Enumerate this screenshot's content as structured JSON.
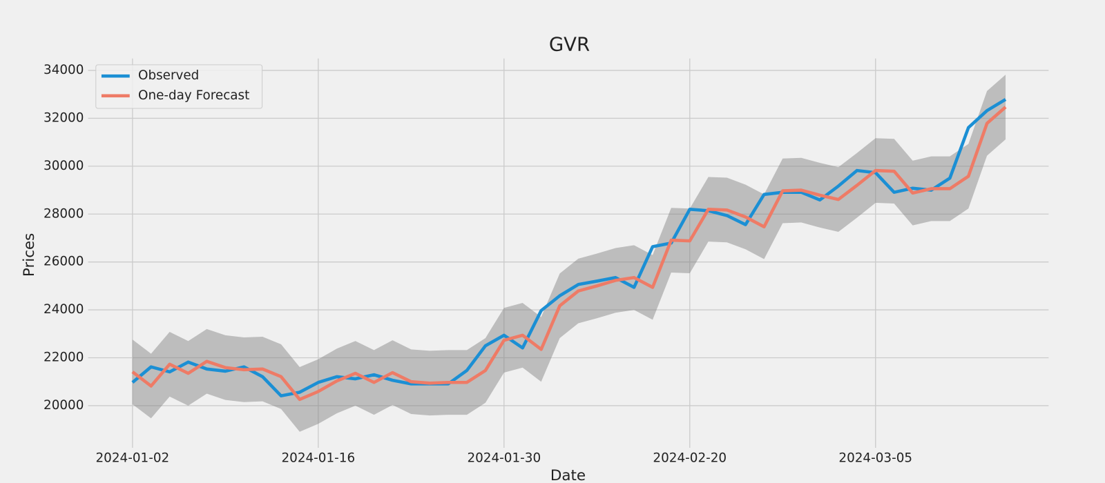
{
  "chart_data": {
    "type": "line",
    "title": "GVR",
    "x_label": "Date",
    "y_label": "Prices",
    "categories": [
      "2024-01-02",
      null,
      null,
      null,
      null,
      null,
      null,
      null,
      null,
      null,
      "2024-01-16",
      null,
      null,
      null,
      null,
      null,
      null,
      null,
      null,
      null,
      "2024-01-30",
      null,
      null,
      null,
      null,
      null,
      null,
      null,
      null,
      null,
      "2024-02-20",
      null,
      null,
      null,
      null,
      null,
      null,
      null,
      null,
      null,
      "2024-03-05",
      null,
      null,
      null,
      null,
      null,
      null,
      null
    ],
    "series": [
      {
        "name": "Observed",
        "color": "#1b8fd4",
        "values": [
          20970,
          21620,
          21410,
          21820,
          21530,
          21440,
          21620,
          21210,
          20410,
          20560,
          20970,
          21210,
          21120,
          21290,
          21060,
          20910,
          20910,
          20910,
          21470,
          22500,
          22940,
          22410,
          23970,
          24590,
          25060,
          25200,
          25350,
          24940,
          26640,
          26790,
          28200,
          28140,
          27940,
          27560,
          28820,
          28910,
          28910,
          28590,
          29170,
          29820,
          29730,
          28910,
          29080,
          29000,
          29500,
          31610,
          32320,
          32790
        ]
      },
      {
        "name": "One-day Forecast",
        "color": "#ee7b66",
        "values": [
          21410,
          20820,
          21730,
          21350,
          21850,
          21590,
          21500,
          21530,
          21210,
          20260,
          20590,
          21030,
          21350,
          20970,
          21380,
          21000,
          20940,
          20970,
          20970,
          21470,
          22730,
          22940,
          22350,
          24170,
          24790,
          25000,
          25230,
          25350,
          24940,
          26910,
          26880,
          28200,
          28170,
          27880,
          27470,
          28970,
          29000,
          28790,
          28610,
          29200,
          29820,
          29790,
          28880,
          29060,
          29060,
          29580,
          31790,
          32470
        ]
      }
    ],
    "band": {
      "color": "#7f7f7f",
      "upper": [
        22760,
        22170,
        23080,
        22700,
        23200,
        22940,
        22850,
        22880,
        22560,
        21610,
        21940,
        22380,
        22700,
        22320,
        22730,
        22350,
        22290,
        22320,
        22320,
        22820,
        24080,
        24290,
        23700,
        25520,
        26140,
        26350,
        26580,
        26700,
        26290,
        28260,
        28230,
        29550,
        29520,
        29230,
        28820,
        30320,
        30350,
        30140,
        29960,
        30550,
        31170,
        31140,
        30230,
        30410,
        30410,
        30930,
        33140,
        33820
      ],
      "lower": [
        20060,
        19470,
        20380,
        20000,
        20500,
        20240,
        20150,
        20180,
        19860,
        18910,
        19240,
        19680,
        20000,
        19620,
        20030,
        19650,
        19590,
        19620,
        19620,
        20120,
        21380,
        21590,
        21000,
        22820,
        23440,
        23650,
        23880,
        24000,
        23590,
        25560,
        25530,
        26850,
        26820,
        26530,
        26120,
        27620,
        27650,
        27440,
        27260,
        27850,
        28470,
        28440,
        27530,
        27710,
        27710,
        28230,
        30440,
        31120
      ]
    },
    "ylim": [
      18240,
      34500
    ],
    "yticks": [
      20000,
      22000,
      24000,
      26000,
      28000,
      30000,
      32000,
      34000
    ],
    "grid": true,
    "legend": "upper left"
  }
}
